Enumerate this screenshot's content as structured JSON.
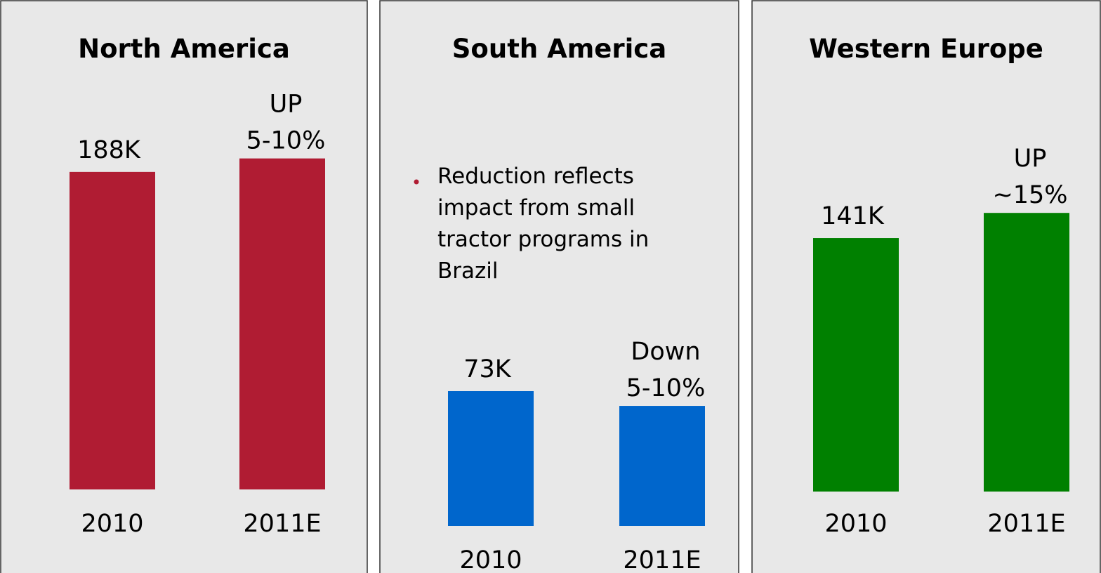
{
  "chart_data": [
    {
      "type": "bar",
      "title": "North America",
      "categories": [
        "2010",
        "2011E"
      ],
      "values": [
        188,
        196
      ],
      "value_labels": [
        "188K",
        null
      ],
      "annotation": [
        "UP",
        "5-10%"
      ],
      "color": "#b01c33",
      "ylim": [
        0,
        200
      ]
    },
    {
      "type": "bar",
      "title": "South America",
      "categories": [
        "2010",
        "2011E"
      ],
      "values": [
        73,
        65
      ],
      "value_labels": [
        "73K",
        null
      ],
      "annotation": [
        "Down",
        "5-10%"
      ],
      "color": "#0066cc",
      "ylim": [
        0,
        200
      ],
      "note": [
        "Reduction reflects",
        "impact from small",
        "tractor programs in",
        "Brazil"
      ]
    },
    {
      "type": "bar",
      "title": "Western Europe",
      "categories": [
        "2010",
        "2011E"
      ],
      "values": [
        141,
        155
      ],
      "value_labels": [
        "141K",
        null
      ],
      "annotation": [
        "UP",
        "~15%"
      ],
      "color": "#008000",
      "ylim": [
        0,
        200
      ]
    }
  ]
}
